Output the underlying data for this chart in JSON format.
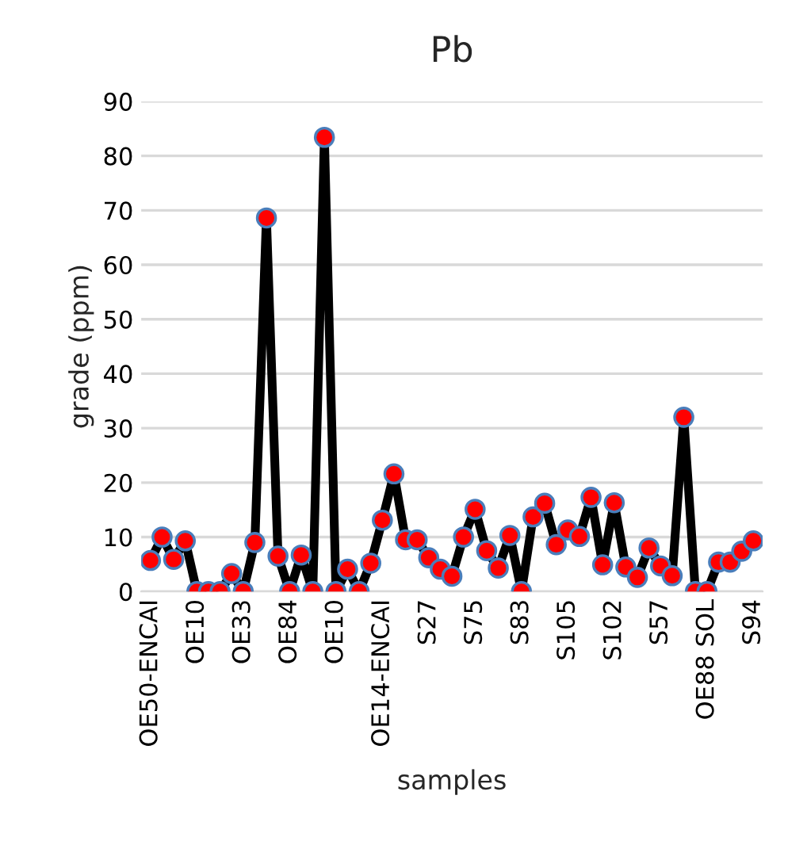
{
  "chart_data": {
    "type": "line",
    "title": "Pb",
    "xlabel": "samples",
    "ylabel": "grade (ppm)",
    "categories": [
      "OE50-ENCAI",
      null,
      null,
      null,
      "OE10",
      null,
      null,
      null,
      "OE33",
      null,
      null,
      null,
      "OE84",
      null,
      null,
      null,
      "OE10",
      null,
      null,
      null,
      "OE14-ENCAI",
      null,
      null,
      null,
      "S27",
      null,
      null,
      null,
      "S75",
      null,
      null,
      null,
      "S83",
      null,
      null,
      null,
      "S105",
      null,
      null,
      null,
      "S102",
      null,
      null,
      null,
      "S57",
      null,
      null,
      null,
      "OE88 SOL",
      null,
      null,
      null,
      "S94"
    ],
    "series": [
      {
        "color": "#000000",
        "values": [
          5.7,
          10,
          5.9,
          9.3,
          0,
          0,
          0,
          3.3,
          0,
          9,
          68.6,
          6.5,
          0,
          6.7,
          0,
          83.4,
          0,
          4.1,
          0,
          5.2,
          13.1,
          21.6,
          9.5,
          9.5,
          6.2,
          4.1,
          2.8,
          10,
          15.1,
          7.5,
          4.3,
          10.3,
          0,
          13.7,
          16.2,
          8.6,
          11.3,
          10.1,
          17.3,
          4.9,
          16.3,
          4.5,
          2.6,
          8,
          4.7,
          2.9,
          32,
          0,
          0,
          5.4,
          5.4,
          7.4,
          9.3
        ]
      }
    ],
    "ylim": [
      0,
      90
    ],
    "yticks": [
      0,
      10,
      20,
      30,
      40,
      50,
      60,
      70,
      80,
      90
    ],
    "grid": "y",
    "marker": "circle",
    "line_style": "solid",
    "legend": false
  }
}
